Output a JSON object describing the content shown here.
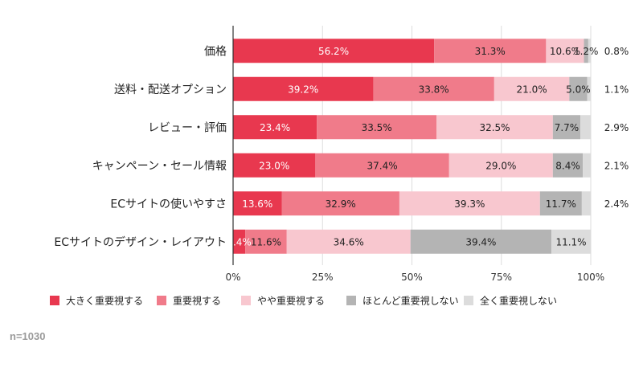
{
  "chart_data": {
    "type": "bar",
    "orientation": "horizontal",
    "stacked": true,
    "categories": [
      "価格",
      "送料・配送オプション",
      "レビュー・評価",
      "キャンペーン・セール情報",
      "ECサイトの使いやすさ",
      "ECサイトのデザイン・レイアウト"
    ],
    "series": [
      {
        "name": "大きく重要視する",
        "color": "#e8384f",
        "values": [
          56.2,
          39.2,
          23.4,
          23.0,
          13.6,
          3.4
        ]
      },
      {
        "name": "重要視する",
        "color": "#f07b8a",
        "values": [
          31.3,
          33.8,
          33.5,
          37.4,
          32.9,
          11.6
        ]
      },
      {
        "name": "やや重要視する",
        "color": "#f8c7cf",
        "values": [
          10.6,
          21.0,
          32.5,
          29.0,
          39.3,
          34.6
        ]
      },
      {
        "name": "ほとんど重要視しない",
        "color": "#b4b4b4",
        "values": [
          1.2,
          5.0,
          7.7,
          8.4,
          11.7,
          39.4
        ]
      },
      {
        "name": "全く重要視しない",
        "color": "#dcdcdc",
        "values": [
          0.8,
          1.1,
          2.9,
          2.1,
          2.4,
          11.1
        ]
      }
    ],
    "data_labels": [
      [
        "56.2%",
        "31.3%",
        "10.6%",
        "1.2%",
        "0.8%"
      ],
      [
        "39.2%",
        "33.8%",
        "21.0%",
        "5.0%",
        "1.1%"
      ],
      [
        "23.4%",
        "33.5%",
        "32.5%",
        "7.7%",
        "2.9%"
      ],
      [
        "23.0%",
        "37.4%",
        "29.0%",
        "8.4%",
        "2.1%"
      ],
      [
        "13.6%",
        "32.9%",
        "39.3%",
        "11.7%",
        "2.4%"
      ],
      [
        "3.4%",
        "11.6%",
        "34.6%",
        "39.4%",
        "11.1%"
      ]
    ],
    "xticks": [
      "0%",
      "25%",
      "50%",
      "75%",
      "100%"
    ],
    "xlim": [
      0,
      100
    ],
    "grid": true,
    "legend_position": "bottom"
  },
  "footnote": "n=1030"
}
